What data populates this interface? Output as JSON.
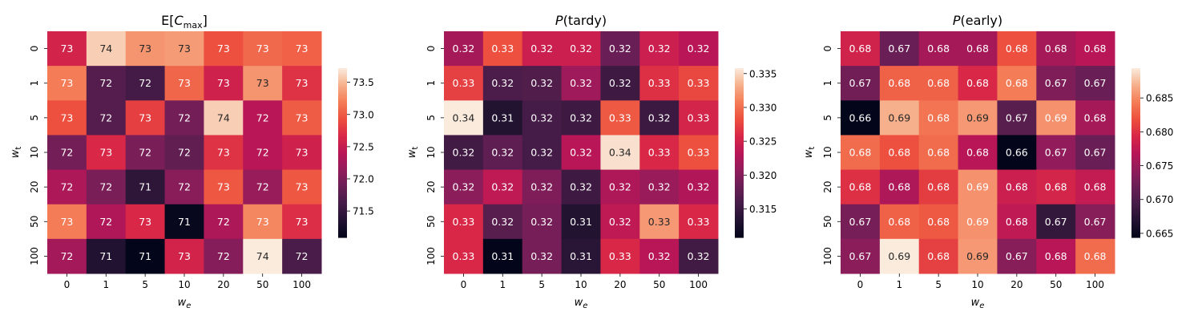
{
  "chart_data": [
    {
      "type": "heatmap",
      "title": {
        "prefix": "E[",
        "italic": "C",
        "sub": "max",
        "suffix": "]"
      },
      "xlabel": {
        "base": "w",
        "sub": "e"
      },
      "ylabel": {
        "base": "w",
        "sub": "t"
      },
      "x_categories": [
        "0",
        "1",
        "5",
        "10",
        "20",
        "50",
        "100"
      ],
      "y_categories": [
        "0",
        "1",
        "5",
        "10",
        "20",
        "50",
        "100"
      ],
      "colormap": "rocket",
      "colorbar": {
        "range": [
          71.09,
          73.72
        ],
        "ticks": [
          "71.5",
          "72.0",
          "72.5",
          "73.0",
          "73.5"
        ]
      },
      "values": [
        [
          72.61,
          73.59,
          73.32,
          73.35,
          72.93,
          73.08,
          73.03
        ],
        [
          73.19,
          71.73,
          71.6,
          73.06,
          72.58,
          73.32,
          72.74
        ],
        [
          72.93,
          71.73,
          72.82,
          71.94,
          73.59,
          72.4,
          73.0
        ],
        [
          71.94,
          72.66,
          71.99,
          71.81,
          72.74,
          72.4,
          72.58
        ],
        [
          72.32,
          71.99,
          71.44,
          72.08,
          72.98,
          72.18,
          72.98
        ],
        [
          73.19,
          72.34,
          72.66,
          71.12,
          72.32,
          73.24,
          72.71
        ],
        [
          72.26,
          71.34,
          71.09,
          72.61,
          72.05,
          73.72,
          71.65
        ]
      ],
      "annotations": [
        [
          "73",
          "74",
          "73",
          "73",
          "73",
          "73",
          "73"
        ],
        [
          "73",
          "72",
          "72",
          "73",
          "73",
          "73",
          "73"
        ],
        [
          "73",
          "72",
          "73",
          "72",
          "74",
          "72",
          "73"
        ],
        [
          "72",
          "73",
          "72",
          "72",
          "73",
          "72",
          "73"
        ],
        [
          "72",
          "72",
          "71",
          "72",
          "73",
          "72",
          "73"
        ],
        [
          "73",
          "72",
          "73",
          "71",
          "72",
          "73",
          "73"
        ],
        [
          "72",
          "71",
          "71",
          "73",
          "72",
          "74",
          "72"
        ]
      ]
    },
    {
      "type": "heatmap",
      "title": {
        "prefix": "",
        "italic": "P",
        "sub": "",
        "suffix": "(tardy)"
      },
      "xlabel": {
        "base": "w",
        "sub": "e"
      },
      "ylabel": {
        "base": "w",
        "sub": "t"
      },
      "x_categories": [
        "0",
        "1",
        "5",
        "10",
        "20",
        "50",
        "100"
      ],
      "y_categories": [
        "0",
        "1",
        "5",
        "10",
        "20",
        "50",
        "100"
      ],
      "colormap": "rocket",
      "colorbar": {
        "range": [
          0.3108,
          0.3358
        ],
        "ticks": [
          "0.315",
          "0.320",
          "0.325",
          "0.330",
          "0.335"
        ]
      },
      "values": [
        [
          0.3221,
          0.3283,
          0.3246,
          0.3246,
          0.3183,
          0.3246,
          0.3233
        ],
        [
          0.3273,
          0.3163,
          0.3166,
          0.3216,
          0.3153,
          0.3263,
          0.3278
        ],
        [
          0.3358,
          0.3133,
          0.3158,
          0.3153,
          0.3288,
          0.3151,
          0.3253
        ],
        [
          0.3156,
          0.3176,
          0.3158,
          0.3233,
          0.3353,
          0.3258,
          0.3283
        ],
        [
          0.3203,
          0.3238,
          0.3196,
          0.3153,
          0.3226,
          0.3213,
          0.3228
        ],
        [
          0.3258,
          0.3171,
          0.3191,
          0.3133,
          0.3238,
          0.3321,
          0.3258
        ],
        [
          0.3258,
          0.3108,
          0.3191,
          0.3138,
          0.3258,
          0.3233,
          0.3156
        ]
      ],
      "annotations": [
        [
          "0.32",
          "0.33",
          "0.32",
          "0.32",
          "0.32",
          "0.32",
          "0.32"
        ],
        [
          "0.33",
          "0.32",
          "0.32",
          "0.32",
          "0.32",
          "0.33",
          "0.33"
        ],
        [
          "0.34",
          "0.31",
          "0.32",
          "0.32",
          "0.33",
          "0.32",
          "0.33"
        ],
        [
          "0.32",
          "0.32",
          "0.32",
          "0.32",
          "0.34",
          "0.33",
          "0.33"
        ],
        [
          "0.32",
          "0.32",
          "0.32",
          "0.32",
          "0.32",
          "0.32",
          "0.32"
        ],
        [
          "0.33",
          "0.32",
          "0.32",
          "0.31",
          "0.32",
          "0.33",
          "0.33"
        ],
        [
          "0.33",
          "0.31",
          "0.32",
          "0.31",
          "0.33",
          "0.32",
          "0.32"
        ]
      ]
    },
    {
      "type": "heatmap",
      "title": {
        "prefix": "",
        "italic": "P",
        "sub": "",
        "suffix": "(early)"
      },
      "xlabel": {
        "base": "w",
        "sub": "e"
      },
      "ylabel": {
        "base": "w",
        "sub": "t"
      },
      "x_categories": [
        "0",
        "1",
        "5",
        "10",
        "20",
        "50",
        "100"
      ],
      "y_categories": [
        "0",
        "1",
        "5",
        "10",
        "20",
        "50",
        "100"
      ],
      "colormap": "rocket",
      "colorbar": {
        "range": [
          0.6644,
          0.6894
        ],
        "ticks": [
          "0.665",
          "0.670",
          "0.675",
          "0.680",
          "0.685"
        ]
      },
      "values": [
        [
          0.6787,
          0.6719,
          0.6757,
          0.6757,
          0.6819,
          0.6757,
          0.6769
        ],
        [
          0.6724,
          0.6829,
          0.6829,
          0.6794,
          0.6844,
          0.6732,
          0.6719
        ],
        [
          0.6644,
          0.6869,
          0.6839,
          0.6857,
          0.6707,
          0.6854,
          0.6757
        ],
        [
          0.6834,
          0.6819,
          0.6834,
          0.6769,
          0.6644,
          0.6744,
          0.6719
        ],
        [
          0.6799,
          0.6762,
          0.6807,
          0.6854,
          0.6782,
          0.6789,
          0.6777
        ],
        [
          0.6727,
          0.6829,
          0.6824,
          0.6854,
          0.6774,
          0.6682,
          0.6737
        ],
        [
          0.6739,
          0.6894,
          0.6809,
          0.6857,
          0.6737,
          0.6769,
          0.6834
        ]
      ],
      "annotations": [
        [
          "0.68",
          "0.67",
          "0.68",
          "0.68",
          "0.68",
          "0.68",
          "0.68"
        ],
        [
          "0.67",
          "0.68",
          "0.68",
          "0.68",
          "0.68",
          "0.67",
          "0.67"
        ],
        [
          "0.66",
          "0.69",
          "0.68",
          "0.69",
          "0.67",
          "0.69",
          "0.68"
        ],
        [
          "0.68",
          "0.68",
          "0.68",
          "0.68",
          "0.66",
          "0.67",
          "0.67"
        ],
        [
          "0.68",
          "0.68",
          "0.68",
          "0.69",
          "0.68",
          "0.68",
          "0.68"
        ],
        [
          "0.67",
          "0.68",
          "0.68",
          "0.69",
          "0.68",
          "0.67",
          "0.67"
        ],
        [
          "0.67",
          "0.69",
          "0.68",
          "0.69",
          "0.67",
          "0.68",
          "0.68"
        ]
      ]
    }
  ]
}
